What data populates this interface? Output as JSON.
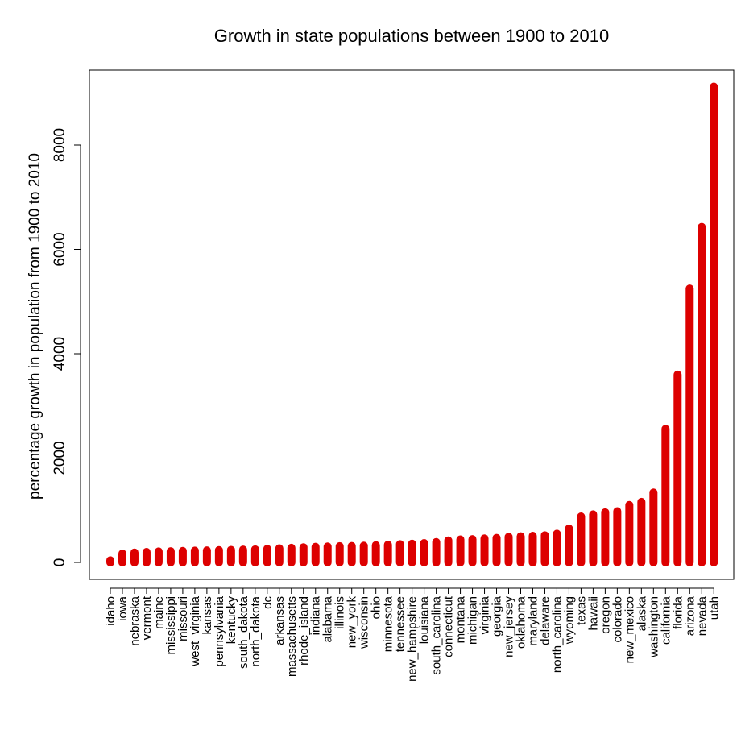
{
  "chart_data": {
    "type": "bar",
    "title": "Growth in state populations between 1900 to 2010",
    "xlabel": "",
    "ylabel": "percentage growth in population from 1900 to 2010",
    "ylim": [
      0,
      9200
    ],
    "yticks": [
      0,
      2000,
      4000,
      6000,
      8000
    ],
    "grid": false,
    "legend": "none",
    "bar_color": "#dd0000",
    "categories": [
      "idaho",
      "iowa",
      "nebraska",
      "vermont",
      "maine",
      "mississippi",
      "missouri",
      "west_virginia",
      "kansas",
      "pennsylvania",
      "kentucky",
      "south_dakota",
      "north_dakota",
      "dc",
      "arkansas",
      "massachusetts",
      "rhode_island",
      "indiana",
      "alabama",
      "illinois",
      "new_york",
      "wisconsin",
      "ohio",
      "minnesota",
      "tennessee",
      "new_hampshire",
      "louisiana",
      "south_carolina",
      "connecticut",
      "montana",
      "michigan",
      "virginia",
      "georgia",
      "new_jersey",
      "oklahoma",
      "maryland",
      "delaware",
      "north_carolina",
      "wyoming",
      "texas",
      "hawaii",
      "oregon",
      "colorado",
      "new_mexico",
      "alaska",
      "washington",
      "california",
      "florida",
      "arizona",
      "nevada",
      "utah"
    ],
    "values": [
      40,
      170,
      190,
      200,
      210,
      215,
      220,
      225,
      230,
      235,
      240,
      245,
      250,
      260,
      270,
      280,
      290,
      300,
      305,
      310,
      315,
      320,
      330,
      340,
      350,
      360,
      370,
      390,
      420,
      440,
      445,
      460,
      470,
      490,
      500,
      510,
      520,
      550,
      650,
      880,
      920,
      960,
      980,
      1100,
      1160,
      1340,
      2560,
      3600,
      5250,
      6430,
      9120
    ]
  }
}
